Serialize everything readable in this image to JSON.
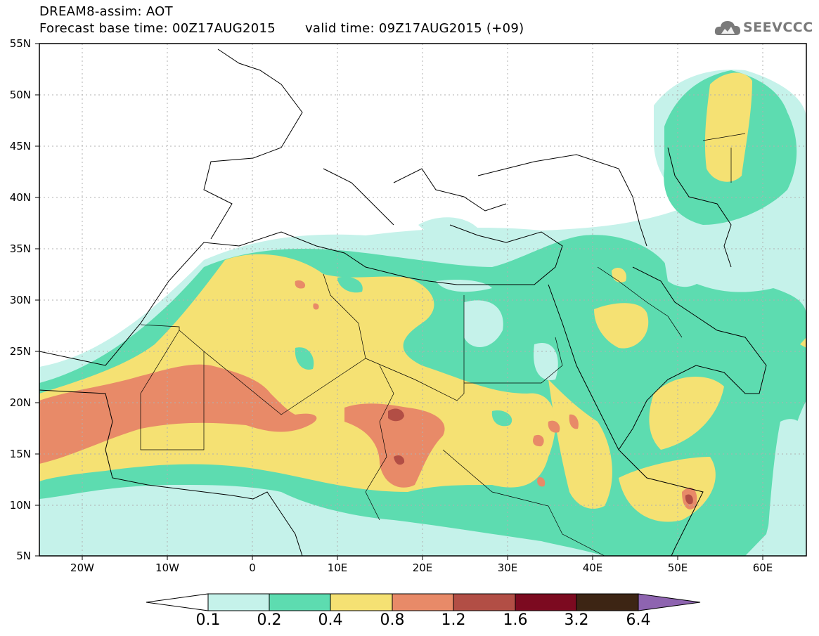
{
  "header": {
    "title_line1": "DREAM8-assim: AOT",
    "base_time": "Forecast base time: 00Z17AUG2015",
    "valid_time": "valid time: 09Z17AUG2015 (+09)",
    "logo_text": "SEEVCCC",
    "logo_icon": "cloud-icon"
  },
  "map": {
    "lon_range": [
      -25,
      65
    ],
    "lat_range": [
      5,
      55
    ],
    "lat_labels": [
      "55N",
      "50N",
      "45N",
      "40N",
      "35N",
      "30N",
      "25N",
      "20N",
      "15N",
      "10N",
      "5N"
    ],
    "lon_labels": [
      "20W",
      "10W",
      "0",
      "10E",
      "20E",
      "30E",
      "40E",
      "50E",
      "60E"
    ],
    "colors": {
      "land": "#ffffff",
      "borders": "#000000",
      "gridlines": "#b0b0b0"
    }
  },
  "colorbar": {
    "labels": [
      "0.1",
      "0.2",
      "0.4",
      "0.8",
      "1.2",
      "1.6",
      "3.2",
      "6.4"
    ],
    "colors": [
      "#c5f2ea",
      "#5ddcb0",
      "#f5e173",
      "#e88a68",
      "#b24e45",
      "#7c0a20",
      "#3d2514",
      "#8e64b0"
    ]
  }
}
